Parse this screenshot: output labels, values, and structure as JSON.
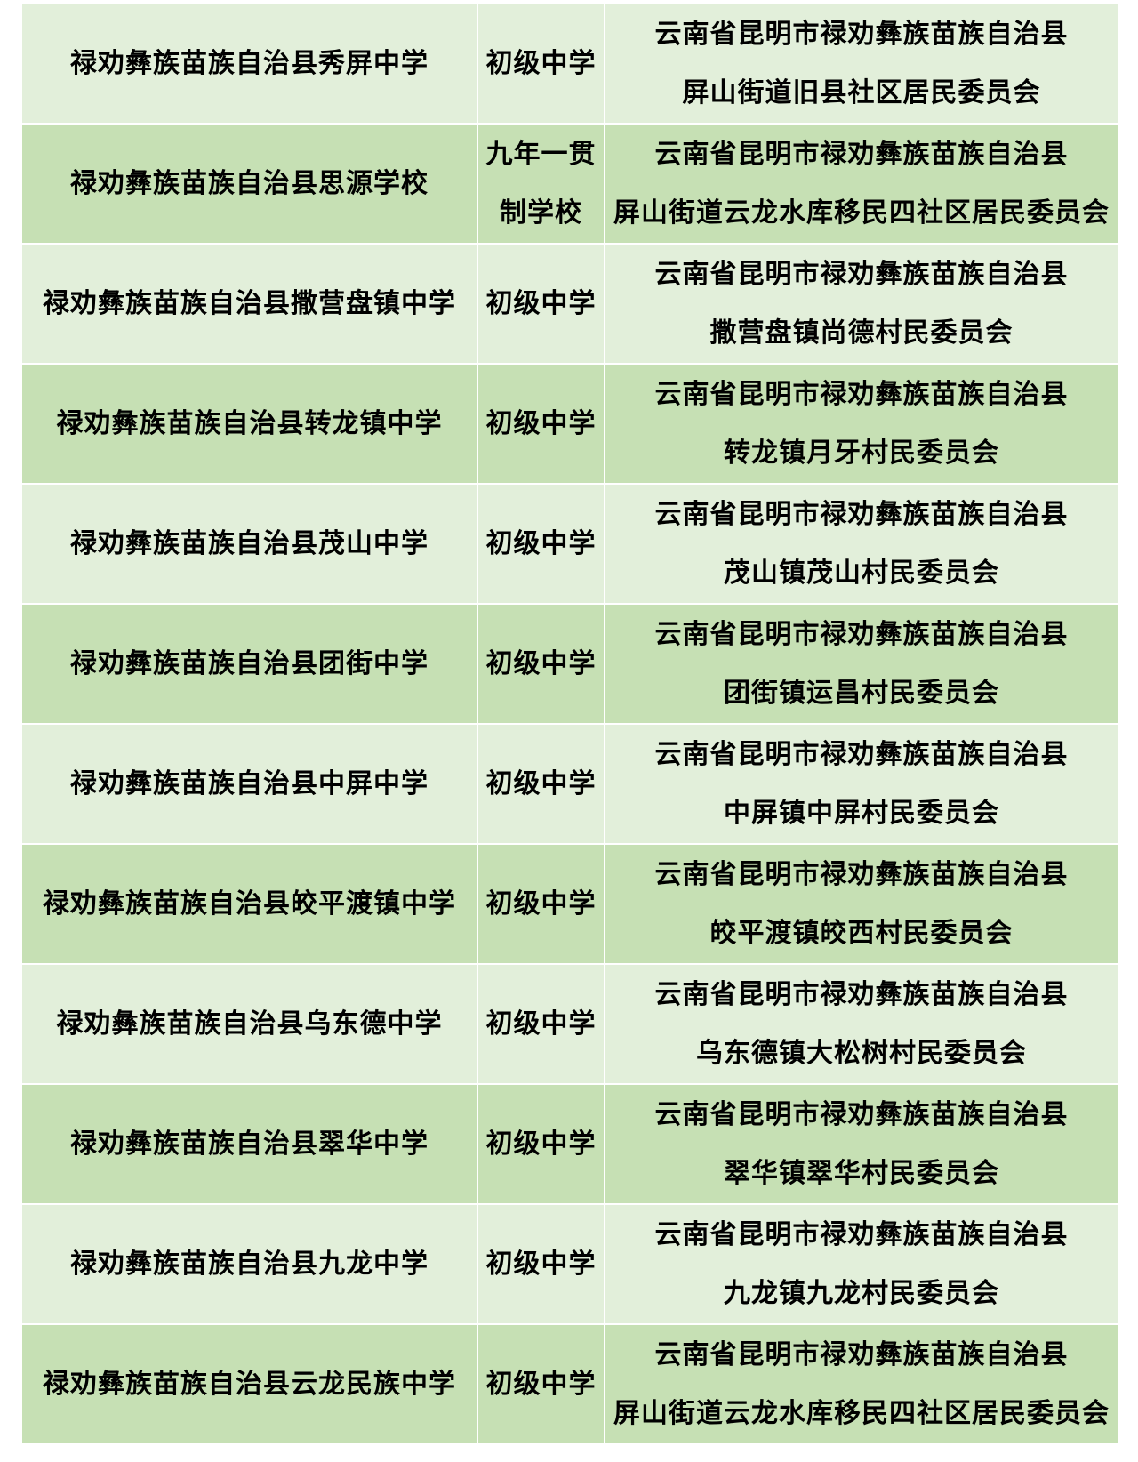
{
  "colors": {
    "row_light": "#e2efda",
    "row_dark": "#c6e0b4",
    "separator": "#ffffff",
    "text": "#000000"
  },
  "table": {
    "rows": [
      {
        "name": "禄劝彝族苗族自治县秀屏中学",
        "type_line1": "初级中学",
        "type_line2": "",
        "addr_line1": "云南省昆明市禄劝彝族苗族自治县",
        "addr_line2": "屏山街道旧县社区居民委员会"
      },
      {
        "name": "禄劝彝族苗族自治县思源学校",
        "type_line1": "九年一贯",
        "type_line2": "制学校",
        "addr_line1": "云南省昆明市禄劝彝族苗族自治县",
        "addr_line2": "屏山街道云龙水库移民四社区居民委员会"
      },
      {
        "name": "禄劝彝族苗族自治县撒营盘镇中学",
        "type_line1": "初级中学",
        "type_line2": "",
        "addr_line1": "云南省昆明市禄劝彝族苗族自治县",
        "addr_line2": "撒营盘镇尚德村民委员会"
      },
      {
        "name": "禄劝彝族苗族自治县转龙镇中学",
        "type_line1": "初级中学",
        "type_line2": "",
        "addr_line1": "云南省昆明市禄劝彝族苗族自治县",
        "addr_line2": "转龙镇月牙村民委员会"
      },
      {
        "name": "禄劝彝族苗族自治县茂山中学",
        "type_line1": "初级中学",
        "type_line2": "",
        "addr_line1": "云南省昆明市禄劝彝族苗族自治县",
        "addr_line2": "茂山镇茂山村民委员会"
      },
      {
        "name": "禄劝彝族苗族自治县团街中学",
        "type_line1": "初级中学",
        "type_line2": "",
        "addr_line1": "云南省昆明市禄劝彝族苗族自治县",
        "addr_line2": "团街镇运昌村民委员会"
      },
      {
        "name": "禄劝彝族苗族自治县中屏中学",
        "type_line1": "初级中学",
        "type_line2": "",
        "addr_line1": "云南省昆明市禄劝彝族苗族自治县",
        "addr_line2": "中屏镇中屏村民委员会"
      },
      {
        "name": "禄劝彝族苗族自治县皎平渡镇中学",
        "type_line1": "初级中学",
        "type_line2": "",
        "addr_line1": "云南省昆明市禄劝彝族苗族自治县",
        "addr_line2": "皎平渡镇皎西村民委员会"
      },
      {
        "name": "禄劝彝族苗族自治县乌东德中学",
        "type_line1": "初级中学",
        "type_line2": "",
        "addr_line1": "云南省昆明市禄劝彝族苗族自治县",
        "addr_line2": "乌东德镇大松树村民委员会"
      },
      {
        "name": "禄劝彝族苗族自治县翠华中学",
        "type_line1": "初级中学",
        "type_line2": "",
        "addr_line1": "云南省昆明市禄劝彝族苗族自治县",
        "addr_line2": "翠华镇翠华村民委员会"
      },
      {
        "name": "禄劝彝族苗族自治县九龙中学",
        "type_line1": "初级中学",
        "type_line2": "",
        "addr_line1": "云南省昆明市禄劝彝族苗族自治县",
        "addr_line2": "九龙镇九龙村民委员会"
      },
      {
        "name": "禄劝彝族苗族自治县云龙民族中学",
        "type_line1": "初级中学",
        "type_line2": "",
        "addr_line1": "云南省昆明市禄劝彝族苗族自治县",
        "addr_line2": "屏山街道云龙水库移民四社区居民委员会"
      }
    ]
  }
}
